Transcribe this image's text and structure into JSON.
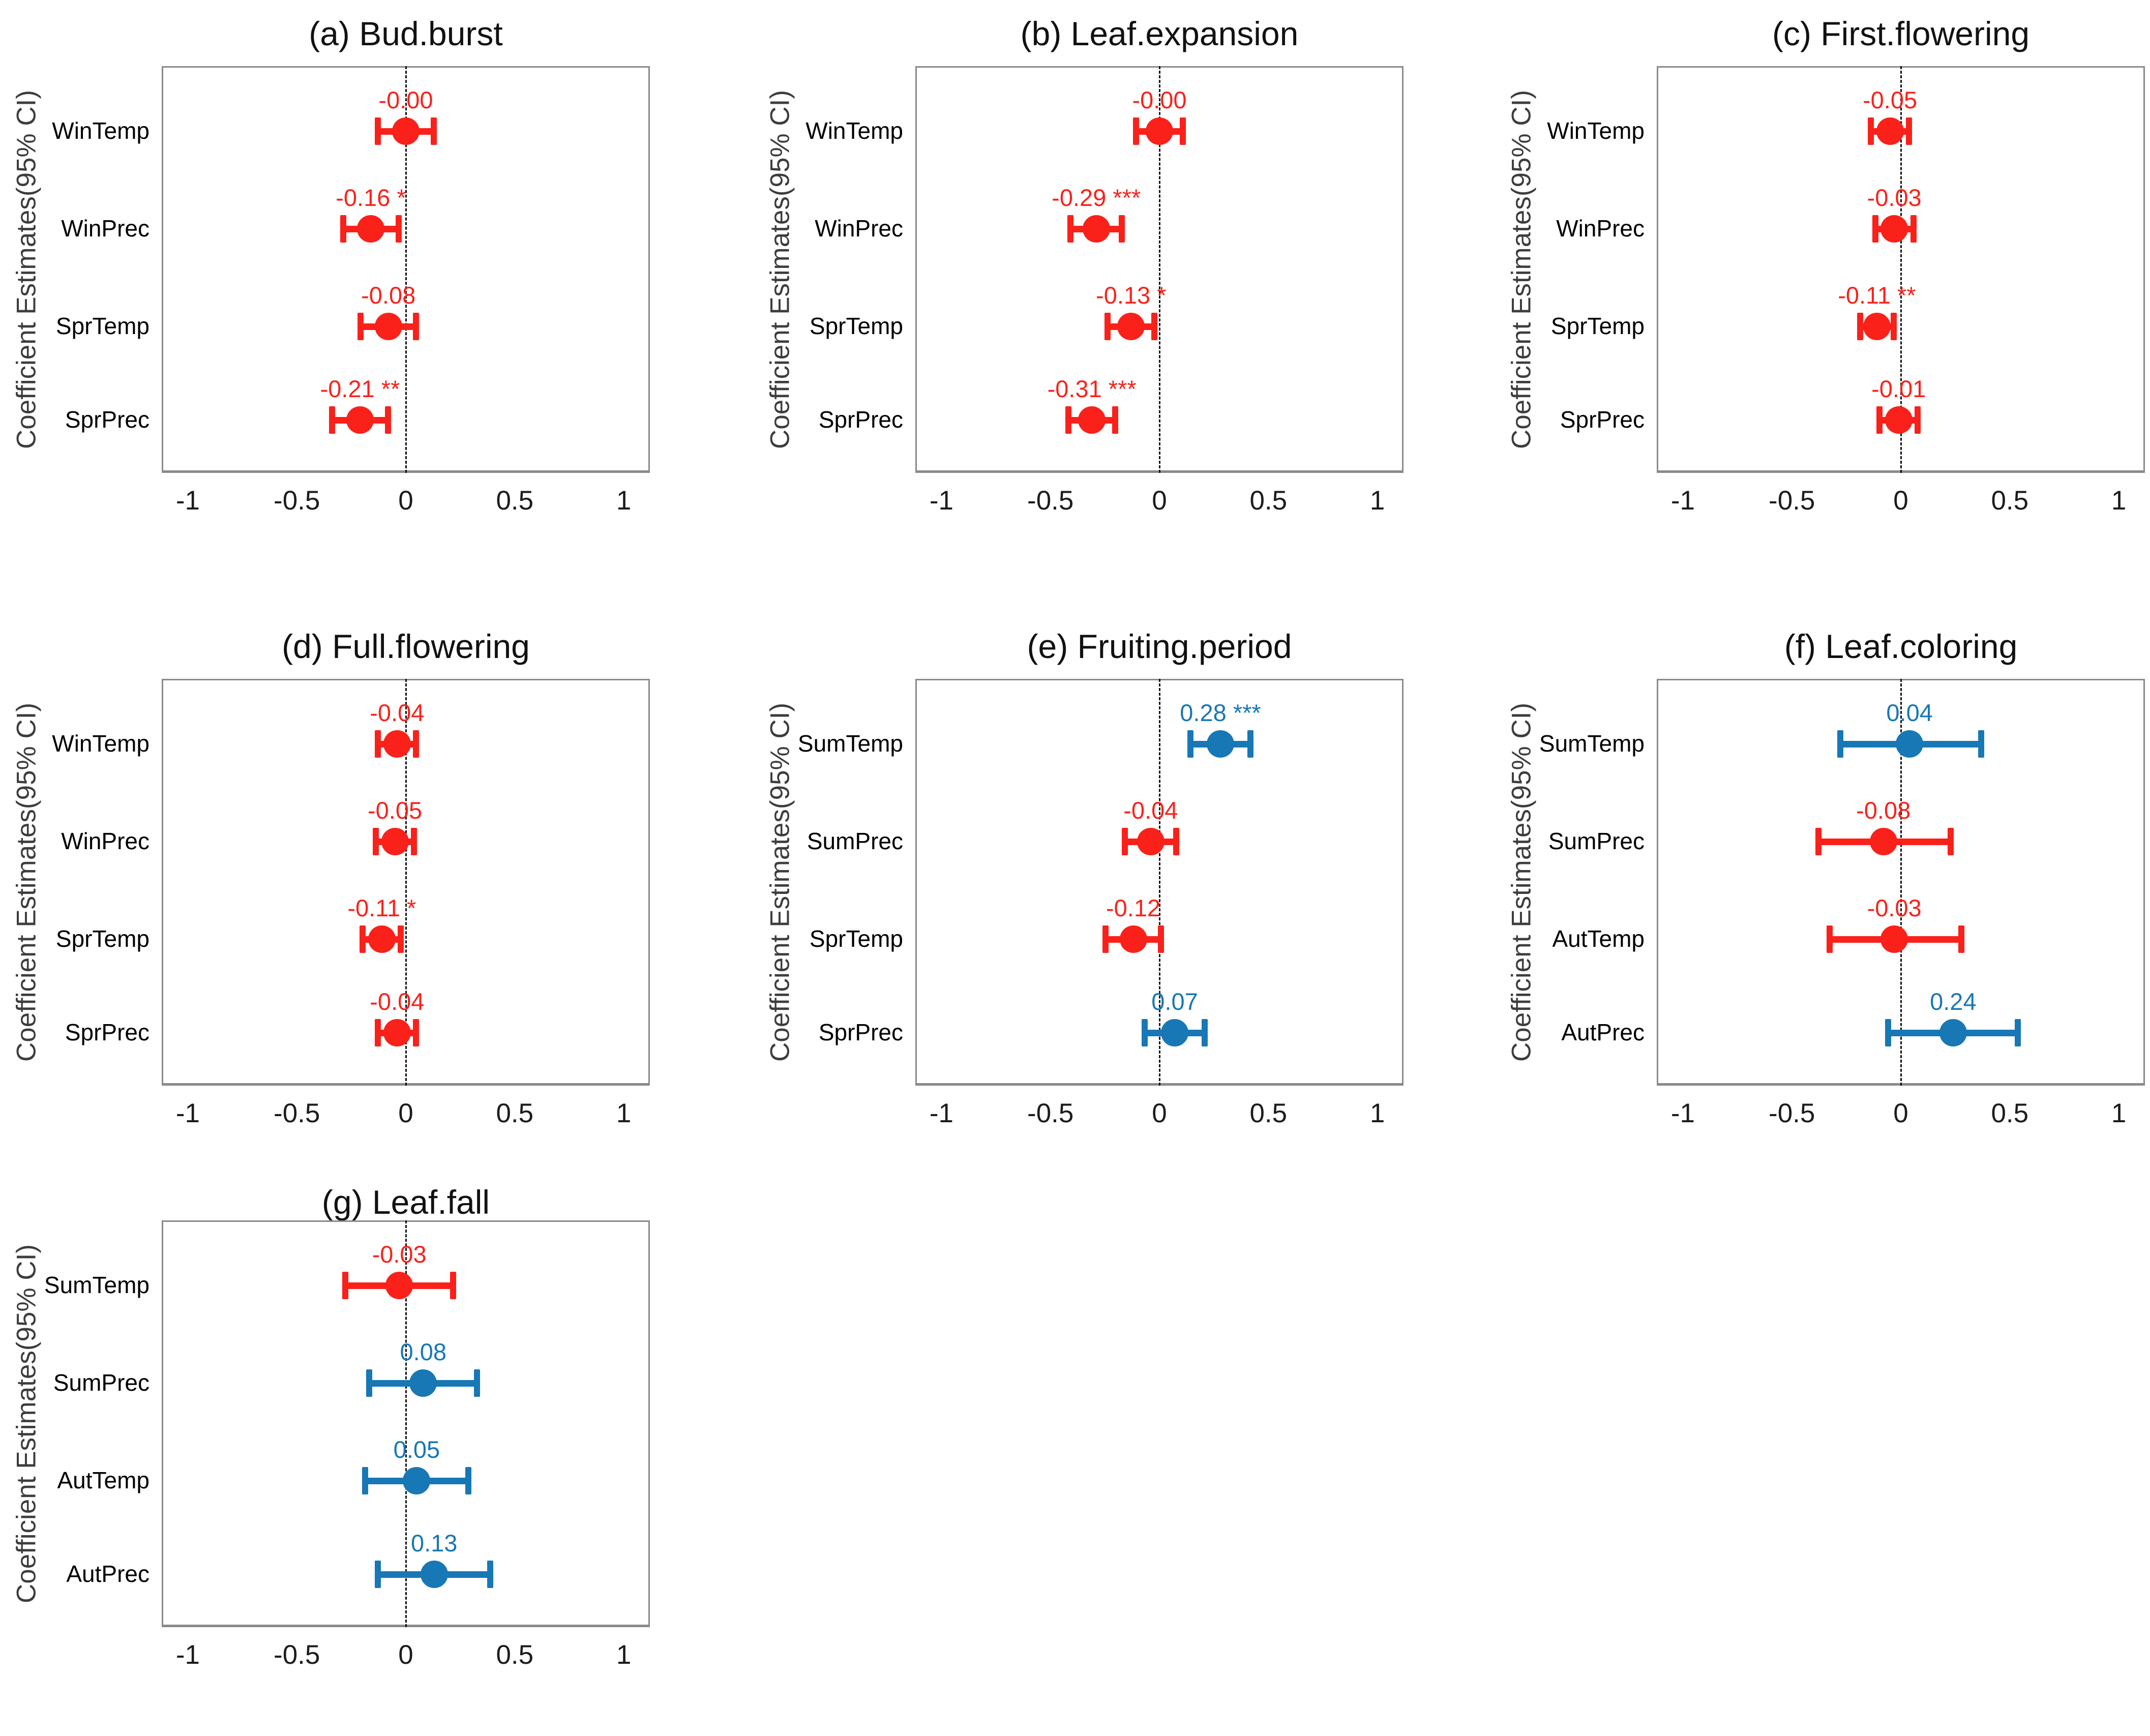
{
  "figure": {
    "background": "#ffffff",
    "y_axis_label": "Coefficient Estimates(95% CI)",
    "x_tick_labels": [
      "-1",
      "-0.5",
      "0",
      "0.5",
      "1"
    ],
    "x_tick_values": [
      -1,
      -0.5,
      0,
      0.5,
      1
    ],
    "x_range": [
      -1.12,
      1.12
    ],
    "colors": {
      "negative": "#fa211a",
      "positive": "#1778b5",
      "frame": "#8a8a8a",
      "zero_line": "#111111",
      "title_text": "#111111",
      "axis_label_text": "#3d3d3d",
      "tick_text": "#1c1c1c"
    }
  },
  "chart_data": [
    {
      "panel": "a",
      "title": "(a) Bud.burst",
      "type": "scatter",
      "error_bars": true,
      "xlabel": "",
      "ylabel": "Coefficient Estimates(95% CI)",
      "xlim": [
        -1.12,
        1.12
      ],
      "x_ticks": [
        -1,
        -0.5,
        0,
        0.5,
        1
      ],
      "zero_line": 0,
      "legend": "none",
      "grid": false,
      "categories": [
        "WinTemp",
        "WinPrec",
        "SprTemp",
        "SprPrec"
      ],
      "points": [
        {
          "category": "WinTemp",
          "estimate": -0.0,
          "label": "-0.00",
          "sig": "",
          "ci_low": -0.13,
          "ci_high": 0.13,
          "color": "negative"
        },
        {
          "category": "WinPrec",
          "estimate": -0.16,
          "label": "-0.16",
          "sig": "*",
          "ci_low": -0.29,
          "ci_high": -0.03,
          "color": "negative"
        },
        {
          "category": "SprTemp",
          "estimate": -0.08,
          "label": "-0.08",
          "sig": "",
          "ci_low": -0.21,
          "ci_high": 0.05,
          "color": "negative"
        },
        {
          "category": "SprPrec",
          "estimate": -0.21,
          "label": "-0.21",
          "sig": "**",
          "ci_low": -0.34,
          "ci_high": -0.08,
          "color": "negative"
        }
      ]
    },
    {
      "panel": "b",
      "title": "(b) Leaf.expansion",
      "type": "scatter",
      "error_bars": true,
      "xlabel": "",
      "ylabel": "Coefficient Estimates(95% CI)",
      "xlim": [
        -1.12,
        1.12
      ],
      "x_ticks": [
        -1,
        -0.5,
        0,
        0.5,
        1
      ],
      "zero_line": 0,
      "legend": "none",
      "grid": false,
      "categories": [
        "WinTemp",
        "WinPrec",
        "SprTemp",
        "SprPrec"
      ],
      "points": [
        {
          "category": "WinTemp",
          "estimate": -0.0,
          "label": "-0.00",
          "sig": "",
          "ci_low": -0.11,
          "ci_high": 0.11,
          "color": "negative"
        },
        {
          "category": "WinPrec",
          "estimate": -0.29,
          "label": "-0.29",
          "sig": "***",
          "ci_low": -0.41,
          "ci_high": -0.17,
          "color": "negative"
        },
        {
          "category": "SprTemp",
          "estimate": -0.13,
          "label": "-0.13",
          "sig": "*",
          "ci_low": -0.24,
          "ci_high": -0.02,
          "color": "negative"
        },
        {
          "category": "SprPrec",
          "estimate": -0.31,
          "label": "-0.31",
          "sig": "***",
          "ci_low": -0.42,
          "ci_high": -0.2,
          "color": "negative"
        }
      ]
    },
    {
      "panel": "c",
      "title": "(c) First.flowering",
      "type": "scatter",
      "error_bars": true,
      "xlabel": "",
      "ylabel": "Coefficient Estimates(95% CI)",
      "xlim": [
        -1.12,
        1.12
      ],
      "x_ticks": [
        -1,
        -0.5,
        0,
        0.5,
        1
      ],
      "zero_line": 0,
      "legend": "none",
      "grid": false,
      "categories": [
        "WinTemp",
        "WinPrec",
        "SprTemp",
        "SprPrec"
      ],
      "points": [
        {
          "category": "WinTemp",
          "estimate": -0.05,
          "label": "-0.05",
          "sig": "",
          "ci_low": -0.14,
          "ci_high": 0.04,
          "color": "negative"
        },
        {
          "category": "WinPrec",
          "estimate": -0.03,
          "label": "-0.03",
          "sig": "",
          "ci_low": -0.12,
          "ci_high": 0.06,
          "color": "negative"
        },
        {
          "category": "SprTemp",
          "estimate": -0.11,
          "label": "-0.11",
          "sig": "**",
          "ci_low": -0.19,
          "ci_high": -0.03,
          "color": "negative"
        },
        {
          "category": "SprPrec",
          "estimate": -0.01,
          "label": "-0.01",
          "sig": "",
          "ci_low": -0.1,
          "ci_high": 0.08,
          "color": "negative"
        }
      ]
    },
    {
      "panel": "d",
      "title": "(d) Full.flowering",
      "type": "scatter",
      "error_bars": true,
      "xlabel": "",
      "ylabel": "Coefficient Estimates(95% CI)",
      "xlim": [
        -1.12,
        1.12
      ],
      "x_ticks": [
        -1,
        -0.5,
        0,
        0.5,
        1
      ],
      "zero_line": 0,
      "legend": "none",
      "grid": false,
      "categories": [
        "WinTemp",
        "WinPrec",
        "SprTemp",
        "SprPrec"
      ],
      "points": [
        {
          "category": "WinTemp",
          "estimate": -0.04,
          "label": "-0.04",
          "sig": "",
          "ci_low": -0.13,
          "ci_high": 0.05,
          "color": "negative"
        },
        {
          "category": "WinPrec",
          "estimate": -0.05,
          "label": "-0.05",
          "sig": "",
          "ci_low": -0.14,
          "ci_high": 0.04,
          "color": "negative"
        },
        {
          "category": "SprTemp",
          "estimate": -0.11,
          "label": "-0.11",
          "sig": "*",
          "ci_low": -0.2,
          "ci_high": -0.02,
          "color": "negative"
        },
        {
          "category": "SprPrec",
          "estimate": -0.04,
          "label": "-0.04",
          "sig": "",
          "ci_low": -0.13,
          "ci_high": 0.05,
          "color": "negative"
        }
      ]
    },
    {
      "panel": "e",
      "title": "(e) Fruiting.period",
      "type": "scatter",
      "error_bars": true,
      "xlabel": "",
      "ylabel": "Coefficient Estimates(95% CI)",
      "xlim": [
        -1.12,
        1.12
      ],
      "x_ticks": [
        -1,
        -0.5,
        0,
        0.5,
        1
      ],
      "zero_line": 0,
      "legend": "none",
      "grid": false,
      "categories": [
        "SumTemp",
        "SumPrec",
        "SprTemp",
        "SprPrec"
      ],
      "points": [
        {
          "category": "SumTemp",
          "estimate": 0.28,
          "label": "0.28",
          "sig": "***",
          "ci_low": 0.14,
          "ci_high": 0.42,
          "color": "positive"
        },
        {
          "category": "SumPrec",
          "estimate": -0.04,
          "label": "-0.04",
          "sig": "",
          "ci_low": -0.16,
          "ci_high": 0.08,
          "color": "negative"
        },
        {
          "category": "SprTemp",
          "estimate": -0.12,
          "label": "-0.12",
          "sig": "",
          "ci_low": -0.25,
          "ci_high": 0.01,
          "color": "negative"
        },
        {
          "category": "SprPrec",
          "estimate": 0.07,
          "label": "0.07",
          "sig": "",
          "ci_low": -0.07,
          "ci_high": 0.21,
          "color": "positive"
        }
      ]
    },
    {
      "panel": "f",
      "title": "(f) Leaf.coloring",
      "type": "scatter",
      "error_bars": true,
      "xlabel": "",
      "ylabel": "Coefficient Estimates(95% CI)",
      "xlim": [
        -1.12,
        1.12
      ],
      "x_ticks": [
        -1,
        -0.5,
        0,
        0.5,
        1
      ],
      "zero_line": 0,
      "legend": "none",
      "grid": false,
      "categories": [
        "SumTemp",
        "SumPrec",
        "AutTemp",
        "AutPrec"
      ],
      "points": [
        {
          "category": "SumTemp",
          "estimate": 0.04,
          "label": "0.04",
          "sig": "",
          "ci_low": -0.28,
          "ci_high": 0.37,
          "color": "positive"
        },
        {
          "category": "SumPrec",
          "estimate": -0.08,
          "label": "-0.08",
          "sig": "",
          "ci_low": -0.38,
          "ci_high": 0.23,
          "color": "negative"
        },
        {
          "category": "AutTemp",
          "estimate": -0.03,
          "label": "-0.03",
          "sig": "",
          "ci_low": -0.33,
          "ci_high": 0.28,
          "color": "negative"
        },
        {
          "category": "AutPrec",
          "estimate": 0.24,
          "label": "0.24",
          "sig": "",
          "ci_low": -0.06,
          "ci_high": 0.54,
          "color": "positive"
        }
      ]
    },
    {
      "panel": "g",
      "title": "(g) Leaf.fall",
      "type": "scatter",
      "error_bars": true,
      "xlabel": "",
      "ylabel": "Coefficient Estimates(95% CI)",
      "xlim": [
        -1.12,
        1.12
      ],
      "x_ticks": [
        -1,
        -0.5,
        0,
        0.5,
        1
      ],
      "zero_line": 0,
      "legend": "none",
      "grid": false,
      "categories": [
        "SumTemp",
        "SumPrec",
        "AutTemp",
        "AutPrec"
      ],
      "points": [
        {
          "category": "SumTemp",
          "estimate": -0.03,
          "label": "-0.03",
          "sig": "",
          "ci_low": -0.28,
          "ci_high": 0.22,
          "color": "negative"
        },
        {
          "category": "SumPrec",
          "estimate": 0.08,
          "label": "0.08",
          "sig": "",
          "ci_low": -0.17,
          "ci_high": 0.33,
          "color": "positive"
        },
        {
          "category": "AutTemp",
          "estimate": 0.05,
          "label": "0.05",
          "sig": "",
          "ci_low": -0.19,
          "ci_high": 0.29,
          "color": "positive"
        },
        {
          "category": "AutPrec",
          "estimate": 0.13,
          "label": "0.13",
          "sig": "",
          "ci_low": -0.13,
          "ci_high": 0.39,
          "color": "positive"
        }
      ]
    }
  ]
}
